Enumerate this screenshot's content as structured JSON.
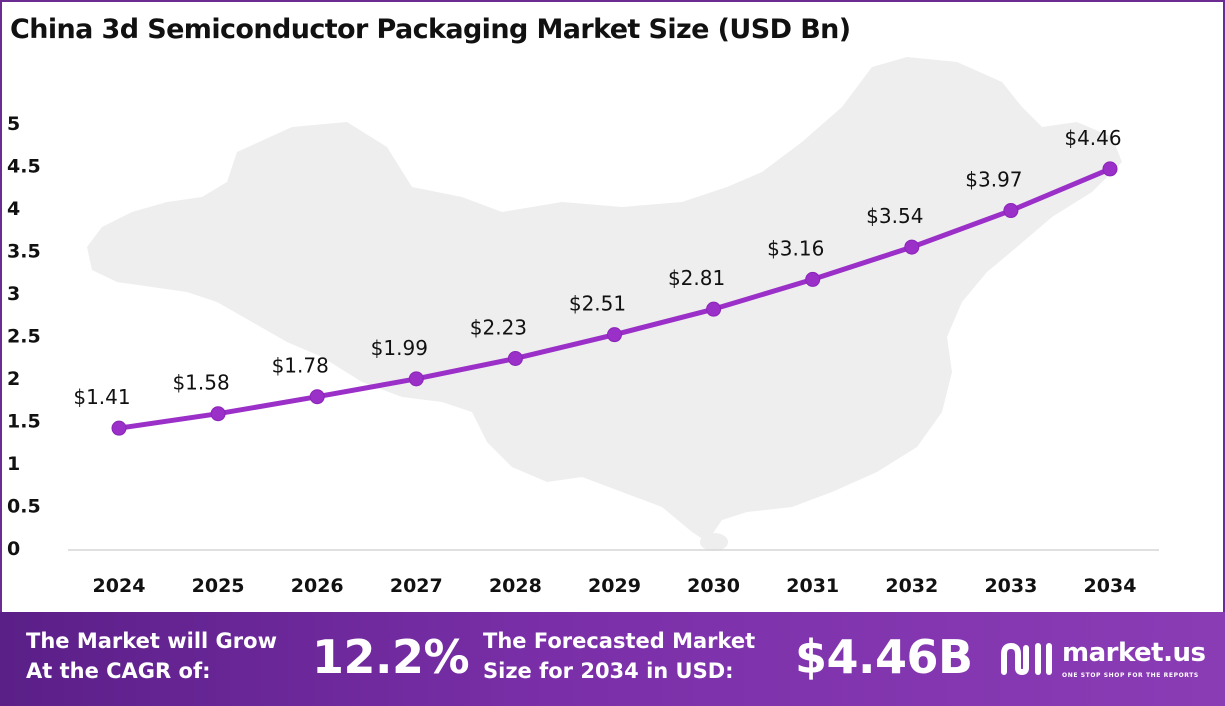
{
  "header": {
    "title": "China 3d Semiconductor Packaging Market Size (USD Bn)"
  },
  "chart_data": {
    "type": "line",
    "title": "China 3d Semiconductor Packaging Market Size (USD Bn)",
    "xlabel": "",
    "ylabel": "",
    "categories": [
      "2024",
      "2025",
      "2026",
      "2027",
      "2028",
      "2029",
      "2030",
      "2031",
      "2032",
      "2033",
      "2034"
    ],
    "series": [
      {
        "values": [
          1.41,
          1.58,
          1.78,
          1.99,
          2.23,
          2.51,
          2.81,
          3.16,
          3.54,
          3.97,
          4.46
        ],
        "labels": [
          "$1.41",
          "$1.58",
          "$1.78",
          "$1.99",
          "$2.23",
          "$2.51",
          "$2.81",
          "$3.16",
          "$3.54",
          "$3.97",
          "$4.46"
        ]
      }
    ],
    "yticks": [
      "0",
      "0.5",
      "1",
      "1.5",
      "2",
      "2.5",
      "3",
      "3.5",
      "4",
      "4.5",
      "5"
    ],
    "ylim": [
      0,
      5
    ],
    "grid": false,
    "legend": "none",
    "line_color": "#9b30c8",
    "background_map": "china-map-silhouette"
  },
  "footer": {
    "cagr_label_line1": "The Market will Grow",
    "cagr_label_line2": "At the CAGR of:",
    "cagr_value": "12.2%",
    "forecast_label_line1": "The Forecasted Market",
    "forecast_label_line2": "Size for 2034 in USD:",
    "forecast_value": "$4.46B",
    "brand_name": "market.us",
    "brand_tagline": "ONE STOP SHOP FOR THE REPORTS"
  },
  "colors": {
    "accent": "#6a2c91",
    "line": "#9b30c8",
    "footer_start": "#5b1f88",
    "footer_end": "#8a3cb5"
  }
}
